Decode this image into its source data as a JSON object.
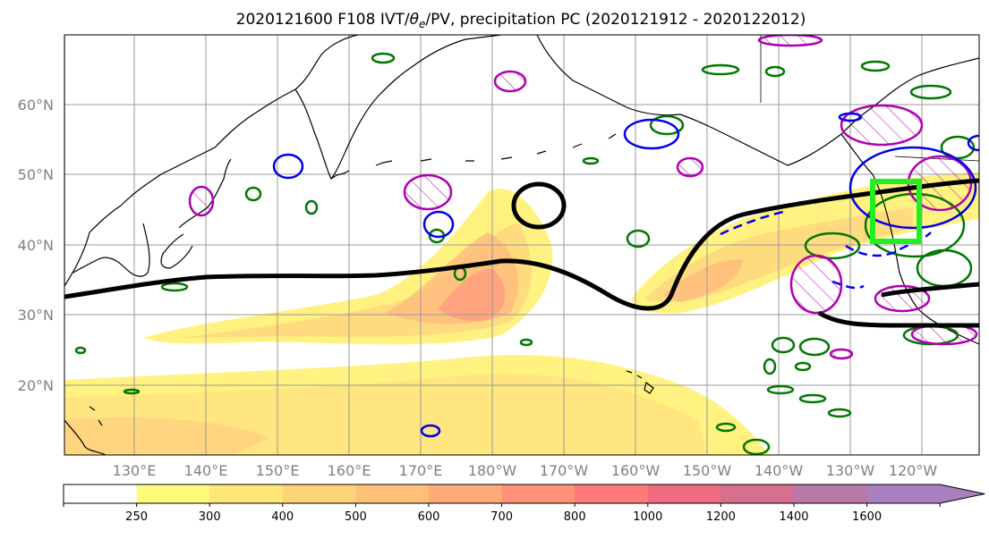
{
  "title_prefix": "2020121600 F108 IVT/",
  "title_theta": "θ",
  "title_theta_sub": "e",
  "title_suffix": "/PV, precipitation PC (2020121912 - 2020122012)",
  "lat_labels": [
    "60°N",
    "50°N",
    "40°N",
    "30°N",
    "20°N"
  ],
  "lon_labels": [
    "130°E",
    "140°E",
    "150°E",
    "160°E",
    "170°E",
    "180°W",
    "170°W",
    "160°W",
    "150°W",
    "140°W",
    "130°W",
    "120°W"
  ],
  "colorbar": {
    "levels": [
      "250",
      "300",
      "400",
      "500",
      "600",
      "700",
      "800",
      "1000",
      "1200",
      "1400",
      "1600"
    ],
    "colors": [
      "#ffffff",
      "#fffb78",
      "#ffe878",
      "#ffd478",
      "#ffc078",
      "#ffaa78",
      "#ff9278",
      "#ff7a78",
      "#ee6e80",
      "#d6708e",
      "#b878a8",
      "#a880c0"
    ]
  },
  "colors": {
    "contour_black": "#000000",
    "pv_magenta": "#b000b0",
    "theta_blue": "#0000ee",
    "precip_green": "#007700",
    "box_green": "#22ee22"
  }
}
